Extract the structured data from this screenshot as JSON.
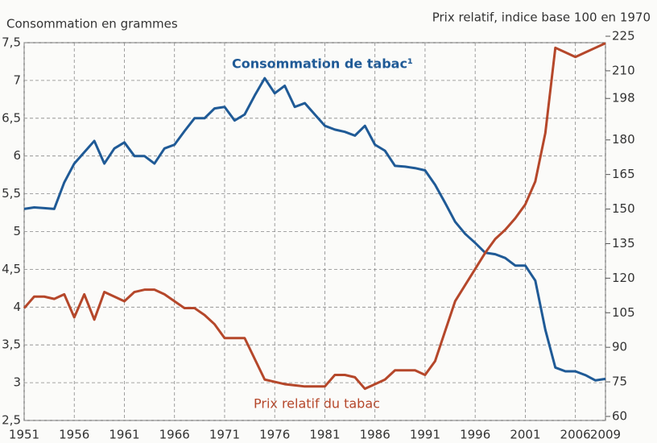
{
  "chart_data": {
    "type": "line",
    "y_label": "Consommation en grammes",
    "y2_label": "Prix relatif, indice base 100 en 1970",
    "annotations": [
      "Consommation de tabac¹",
      "Prix relatif du tabac"
    ],
    "x": [
      1951,
      1952,
      1953,
      1954,
      1955,
      1956,
      1957,
      1958,
      1959,
      1960,
      1961,
      1962,
      1963,
      1964,
      1965,
      1966,
      1967,
      1968,
      1969,
      1970,
      1971,
      1972,
      1973,
      1974,
      1975,
      1976,
      1977,
      1978,
      1979,
      1980,
      1981,
      1982,
      1983,
      1984,
      1985,
      1986,
      1987,
      1988,
      1989,
      1990,
      1991,
      1992,
      1993,
      1994,
      1995,
      1996,
      1997,
      1998,
      1999,
      2000,
      2001,
      2002,
      2003,
      2004,
      2005,
      2006,
      2007,
      2008,
      2009
    ],
    "series": [
      {
        "name": "Consommation de tabac¹",
        "color": "#1f5a96",
        "axis": "y",
        "values": [
          5.3,
          5.32,
          5.31,
          5.3,
          5.65,
          5.9,
          6.05,
          6.2,
          5.9,
          6.1,
          6.18,
          6.0,
          6.0,
          5.9,
          6.1,
          6.15,
          6.33,
          6.5,
          6.5,
          6.63,
          6.65,
          6.47,
          6.55,
          6.8,
          7.03,
          6.83,
          6.93,
          6.65,
          6.7,
          6.55,
          6.4,
          6.35,
          6.32,
          6.27,
          6.4,
          6.15,
          6.07,
          5.87,
          5.86,
          5.84,
          5.81,
          5.62,
          5.38,
          5.13,
          4.97,
          4.85,
          4.72,
          4.7,
          4.65,
          4.55,
          4.55,
          4.35,
          3.7,
          3.2,
          3.15,
          3.15,
          3.1,
          3.03,
          3.05
        ]
      },
      {
        "name": "Prix relatif du tabac",
        "color": "#b5472a",
        "axis": "y2",
        "values": [
          107,
          112,
          112,
          111,
          113,
          103,
          113,
          102,
          114,
          112,
          110,
          114,
          115,
          115,
          113,
          110,
          107,
          107,
          104,
          100,
          94,
          94,
          94,
          85,
          76,
          75,
          74,
          73.5,
          73,
          73,
          73,
          78,
          78,
          77,
          72,
          74,
          76,
          80,
          80,
          80,
          78,
          84,
          97,
          110,
          117,
          124,
          131,
          137,
          141,
          146,
          152,
          162,
          183,
          220,
          218,
          216,
          218,
          220,
          222
        ]
      }
    ],
    "xlim": [
      1951,
      2009
    ],
    "xticks": [
      1951,
      1956,
      1961,
      1966,
      1971,
      1976,
      1981,
      1986,
      1991,
      1996,
      2001,
      2006,
      2009
    ],
    "ylim": [
      2.5,
      7.5
    ],
    "yticks": [
      {
        "value": 2.5,
        "label": "2,5"
      },
      3,
      {
        "value": 3.5,
        "label": "3,5"
      },
      4,
      {
        "value": 4.5,
        "label": "4,5"
      },
      5,
      {
        "value": 5.5,
        "label": "5,5"
      },
      6,
      {
        "value": 6.5,
        "label": "6,5"
      },
      7,
      {
        "value": 7.5,
        "label": "7,5"
      }
    ],
    "y2lim": [
      60,
      225
    ],
    "y2ticks": [
      60,
      75,
      90,
      105,
      120,
      135,
      150,
      165,
      180,
      198,
      210,
      225
    ],
    "grid": true
  }
}
